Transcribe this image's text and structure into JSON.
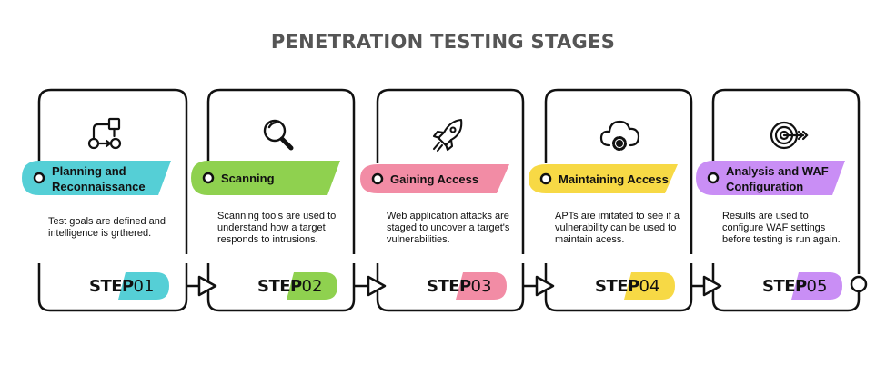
{
  "title": "PENETRATION TESTING STAGES",
  "stages": [
    {
      "label": "Planning and Reconnaissance",
      "description": "Test goals are defined and intelligence is grthered.",
      "step_word": "STEP",
      "step_number": "01",
      "color": "#55cfd6",
      "icon": "flowchart-icon"
    },
    {
      "label": "Scanning",
      "description": "Scanning tools are used to understand how a target responds to intrusions.",
      "step_word": "STEP",
      "step_number": "02",
      "color": "#8fd14f",
      "icon": "magnifier-icon"
    },
    {
      "label": "Gaining Access",
      "description": "Web application attacks are staged to uncover a target's vulnerabilities.",
      "step_word": "STEP",
      "step_number": "03",
      "color": "#f28ca5",
      "icon": "rocket-icon"
    },
    {
      "label": "Maintaining Access",
      "description": "APTs are imitated to see if a vulnerability can be used to maintain acess.",
      "step_word": "STEP",
      "step_number": "04",
      "color": "#f7d945",
      "icon": "cloud-gear-icon"
    },
    {
      "label": "Analysis and WAF Configuration",
      "description": "Results are used to configure WAF settings before testing is run again.",
      "step_word": "STEP",
      "step_number": "05",
      "color": "#c98ef5",
      "icon": "target-icon"
    }
  ]
}
